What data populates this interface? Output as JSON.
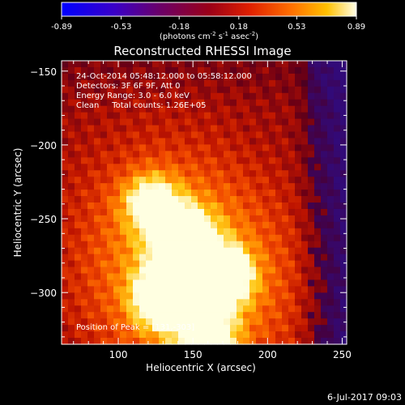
{
  "colorbar": {
    "ticks": [
      "-0.89",
      "-0.53",
      "-0.18",
      "0.18",
      "0.53",
      "0.89"
    ],
    "tick_values": [
      -0.89,
      -0.53,
      -0.18,
      0.18,
      0.53,
      0.89
    ],
    "range": [
      -0.89,
      0.89
    ],
    "unit_label_parts": [
      "(photons cm",
      "-2",
      " s",
      "-1",
      " asec",
      "-2",
      ")"
    ]
  },
  "chart_data": {
    "type": "heatmap",
    "title": "Reconstructed RHESSI Image",
    "xlabel": "Heliocentric X (arcsec)",
    "ylabel": "Heliocentric Y (arcsec)",
    "xlim": [
      62,
      253
    ],
    "ylim": [
      -335,
      -143
    ],
    "xticks": [
      100,
      150,
      200,
      250
    ],
    "yticks": [
      -150,
      -200,
      -250,
      -300
    ],
    "info_lines": [
      "24-Oct-2014 05:48:12.000 to 05:58:12.000",
      "Detectors: 3F 6F 9F, Att 0",
      "Energy Range: 3.0 - 6.0 keV",
      "Clean     Total counts: 1.26E+05"
    ],
    "peak_label": "Position of Peak = [131,-303]",
    "peak": [
      131,
      -303
    ],
    "sources": [
      {
        "x": 131,
        "y": -303,
        "amp": 0.89
      },
      {
        "x": 143,
        "y": -262,
        "amp": 0.8
      },
      {
        "x": 170,
        "y": -289,
        "amp": 0.78
      },
      {
        "x": 122,
        "y": -238,
        "amp": 0.55
      },
      {
        "x": 160,
        "y": -330,
        "amp": 0.6
      }
    ]
  },
  "footer": {
    "date": "6-Jul-2017 09:03"
  }
}
